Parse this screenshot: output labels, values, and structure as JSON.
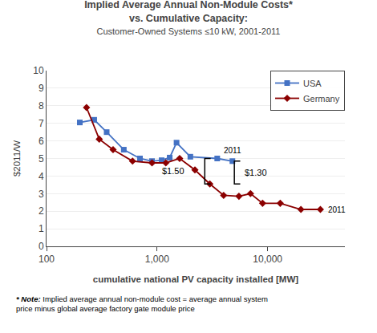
{
  "chart_data": {
    "type": "line",
    "title": "Implied Average Annual Non-Module Costs*\nvs. Cumulative Capacity:",
    "subtitle": "Customer-Owned Systems ≤10 kW, 2001-2011",
    "xlabel": "cumulative national PV capacity installed [MW]",
    "ylabel": "$2011/W",
    "log": "x",
    "xlim": [
      100,
      50000
    ],
    "xticks": [
      100,
      {
        "value": 1000,
        "label": "1,000"
      },
      {
        "value": 10000,
        "label": "10,000"
      }
    ],
    "ylim": [
      0,
      10
    ],
    "yticks": [
      0,
      1,
      2,
      3,
      4,
      5,
      6,
      7,
      8,
      9,
      10
    ],
    "grid": true,
    "legend": "upper right",
    "series": [
      {
        "name": "USA",
        "color": "#4472C4",
        "marker": "square",
        "x": [
          200,
          270,
          350,
          500,
          700,
          900,
          1100,
          1300,
          1500,
          2000,
          3500,
          4800
        ],
        "values": [
          7.05,
          7.2,
          6.5,
          5.5,
          5.0,
          4.85,
          4.9,
          5.05,
          5.9,
          5.1,
          5.0,
          4.85
        ]
      },
      {
        "name": "Germany",
        "color": "#8B0000",
        "marker": "diamond",
        "x": [
          230,
          300,
          400,
          600,
          900,
          1200,
          1600,
          2200,
          3000,
          4000,
          5500,
          7000,
          9000,
          13000,
          20000,
          30000
        ],
        "values": [
          7.9,
          6.1,
          5.5,
          4.85,
          4.75,
          4.75,
          5.0,
          4.35,
          3.55,
          2.9,
          2.85,
          3.0,
          2.45,
          2.45,
          2.1,
          2.1
        ]
      }
    ],
    "annotations": [
      {
        "text": "2011",
        "x": 4800,
        "y": 4.85
      },
      {
        "text": "2011",
        "x": 30000,
        "y": 2.1
      }
    ],
    "brackets": [
      {
        "text": "$1.50",
        "x": 2700,
        "y_top": 5.0,
        "y_bottom": 3.55
      },
      {
        "text": "$1.30",
        "x": 5000,
        "y_top": 4.85,
        "y_bottom": 3.55
      }
    ],
    "note": [
      "* Note:",
      "Implied average annual non-module cost = average annual system\nprice minus global average factory gate module price"
    ]
  }
}
